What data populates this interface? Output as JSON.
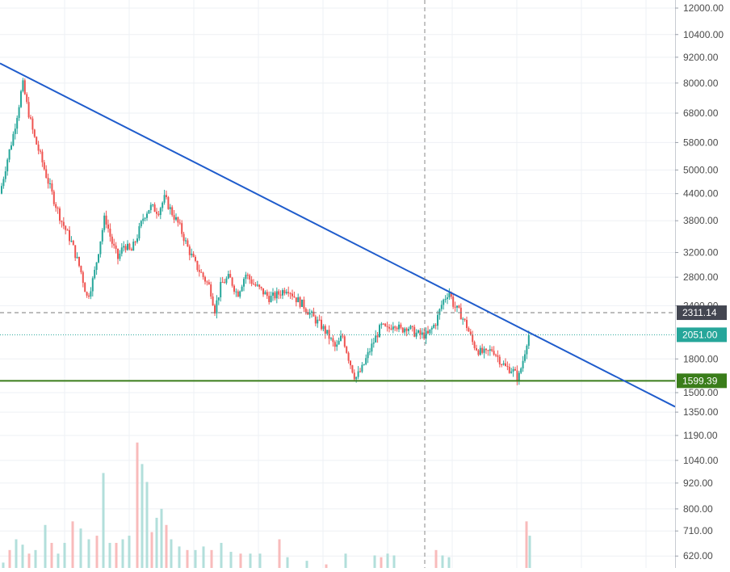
{
  "chart_data": {
    "type": "candlestick",
    "scale": "log",
    "grid": true,
    "y_ticks": [
      12000,
      10400,
      9200,
      8000,
      6800,
      5800,
      5000,
      4400,
      3800,
      3200,
      2800,
      2400,
      1800,
      1500,
      1350,
      1190,
      1040,
      920,
      800,
      710,
      620
    ],
    "y_tick_labels": [
      "12000.00",
      "10400.00",
      "9200.00",
      "8000.00",
      "6800.00",
      "5800.00",
      "5000.00",
      "4400.00",
      "3800.00",
      "3200.00",
      "2800.00",
      "2400.00",
      "1800.00",
      "1500.00",
      "1350.00",
      "1190.00",
      "1040.00",
      "920.00",
      "800.00",
      "710.00",
      "620.00"
    ],
    "price_path": [
      [
        0,
        4400
      ],
      [
        8,
        5200
      ],
      [
        16,
        6000
      ],
      [
        24,
        7200
      ],
      [
        28,
        8000
      ],
      [
        34,
        7000
      ],
      [
        42,
        6000
      ],
      [
        50,
        5400
      ],
      [
        58,
        4800
      ],
      [
        66,
        4300
      ],
      [
        76,
        3800
      ],
      [
        88,
        3400
      ],
      [
        100,
        2900
      ],
      [
        108,
        2500
      ],
      [
        116,
        2800
      ],
      [
        124,
        3400
      ],
      [
        130,
        3900
      ],
      [
        138,
        3400
      ],
      [
        146,
        3100
      ],
      [
        154,
        3350
      ],
      [
        162,
        3200
      ],
      [
        170,
        3500
      ],
      [
        178,
        3900
      ],
      [
        186,
        4100
      ],
      [
        196,
        4000
      ],
      [
        204,
        4300
      ],
      [
        212,
        4000
      ],
      [
        222,
        3700
      ],
      [
        232,
        3300
      ],
      [
        242,
        3000
      ],
      [
        252,
        2800
      ],
      [
        260,
        2650
      ],
      [
        266,
        2350
      ],
      [
        274,
        2700
      ],
      [
        284,
        2800
      ],
      [
        294,
        2550
      ],
      [
        304,
        2850
      ],
      [
        314,
        2700
      ],
      [
        324,
        2600
      ],
      [
        334,
        2500
      ],
      [
        344,
        2550
      ],
      [
        356,
        2650
      ],
      [
        366,
        2500
      ],
      [
        376,
        2400
      ],
      [
        388,
        2250
      ],
      [
        398,
        2150
      ],
      [
        406,
        2050
      ],
      [
        416,
        1900
      ],
      [
        424,
        2050
      ],
      [
        432,
        1800
      ],
      [
        440,
        1620
      ],
      [
        448,
        1700
      ],
      [
        456,
        1850
      ],
      [
        464,
        2000
      ],
      [
        472,
        2150
      ],
      [
        480,
        2100
      ],
      [
        488,
        2200
      ],
      [
        496,
        2100
      ],
      [
        504,
        2150
      ],
      [
        512,
        2080
      ],
      [
        520,
        2050
      ],
      [
        530,
        2050
      ],
      [
        540,
        2200
      ],
      [
        548,
        2450
      ],
      [
        556,
        2600
      ],
      [
        562,
        2400
      ],
      [
        570,
        2300
      ],
      [
        578,
        2150
      ],
      [
        586,
        1950
      ],
      [
        594,
        1870
      ],
      [
        602,
        1850
      ],
      [
        610,
        1900
      ],
      [
        618,
        1800
      ],
      [
        626,
        1720
      ],
      [
        634,
        1700
      ],
      [
        642,
        1620
      ],
      [
        648,
        1800
      ],
      [
        654,
        2050
      ]
    ],
    "volumes": [
      [
        4,
        650
      ],
      [
        12,
        720
      ],
      [
        20,
        780
      ],
      [
        28,
        750
      ],
      [
        36,
        700
      ],
      [
        44,
        720
      ],
      [
        56,
        860
      ],
      [
        64,
        760
      ],
      [
        72,
        700
      ],
      [
        80,
        760
      ],
      [
        90,
        880
      ],
      [
        100,
        840
      ],
      [
        110,
        780
      ],
      [
        120,
        800
      ],
      [
        128,
        1150
      ],
      [
        136,
        760
      ],
      [
        144,
        760
      ],
      [
        152,
        780
      ],
      [
        160,
        800
      ],
      [
        170,
        1320
      ],
      [
        176,
        1200
      ],
      [
        182,
        1100
      ],
      [
        188,
        820
      ],
      [
        194,
        900
      ],
      [
        200,
        950
      ],
      [
        206,
        860
      ],
      [
        212,
        780
      ],
      [
        222,
        740
      ],
      [
        232,
        720
      ],
      [
        242,
        720
      ],
      [
        252,
        740
      ],
      [
        262,
        720
      ],
      [
        274,
        760
      ],
      [
        286,
        710
      ],
      [
        298,
        700
      ],
      [
        310,
        700
      ],
      [
        322,
        700
      ],
      [
        346,
        780
      ],
      [
        356,
        680
      ],
      [
        380,
        660
      ],
      [
        404,
        640
      ],
      [
        428,
        700
      ],
      [
        464,
        690
      ],
      [
        472,
        680
      ],
      [
        480,
        700
      ],
      [
        488,
        690
      ],
      [
        540,
        720
      ],
      [
        548,
        690
      ],
      [
        556,
        680
      ],
      [
        652,
        880
      ],
      [
        656,
        800
      ]
    ],
    "horizontal_levels": [
      {
        "value": 2311.14,
        "label": "2311.14",
        "style": "dashed",
        "color": "#7b7b7b",
        "label_bg": "#434651"
      },
      {
        "value": 2051.0,
        "label": "2051.00",
        "style": "dotted",
        "color": "#26a69a",
        "label_bg": "#26a69a"
      },
      {
        "value": 1599.39,
        "label": "1599.39",
        "style": "solid",
        "color": "#3a7d1a",
        "label_bg": "#3a7d1a"
      }
    ],
    "trendline": {
      "start": [
        0,
        8900
      ],
      "end": [
        836,
        1390
      ],
      "color": "#1f5ccc"
    },
    "crosshair_x": 526
  },
  "colors": {
    "up": "#26a69a",
    "down": "#ef5350",
    "up_volume": "#b2dfdb",
    "down_volume": "#f8bbbb",
    "grid": "#eef0f4",
    "axis_text": "#4a4a4a"
  }
}
